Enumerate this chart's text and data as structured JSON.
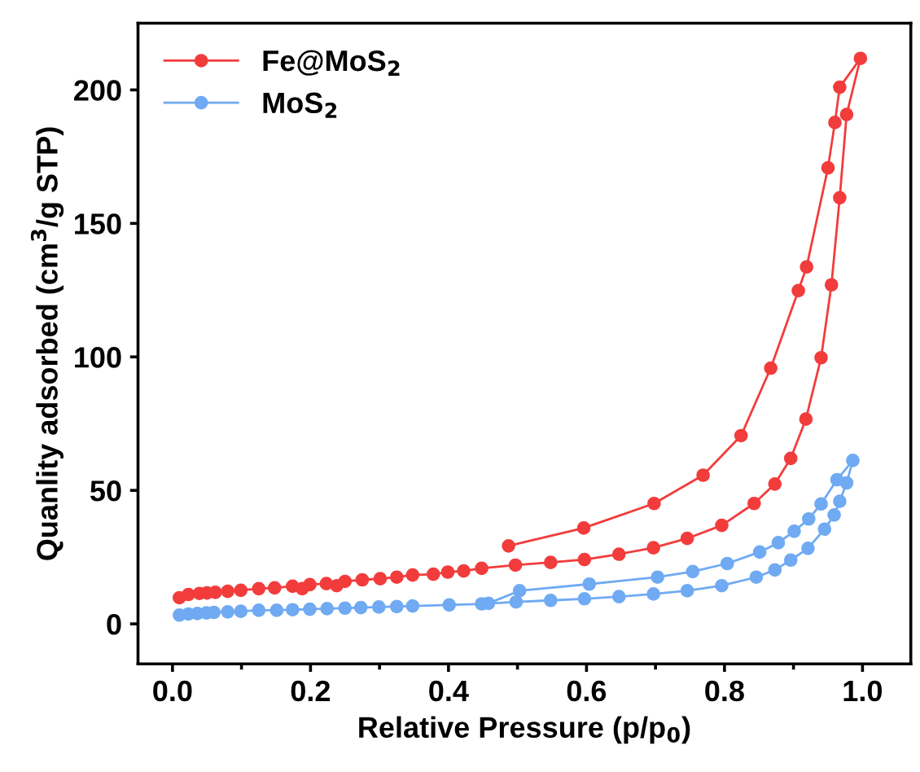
{
  "chart_data": {
    "type": "line",
    "xlabel": "Relative Pressure (p/p$_{0}$)",
    "ylabel": "Quanlity adsorbed (cm$^{3}$/g STP)",
    "xlim": [
      -0.05,
      1.07
    ],
    "ylim": [
      -15,
      225
    ],
    "xticks": [
      {
        "value": 0.0,
        "label": "0.0"
      },
      {
        "value": 0.1,
        "label": null
      },
      {
        "value": 0.2,
        "label": "0.2"
      },
      {
        "value": 0.3,
        "label": null
      },
      {
        "value": 0.4,
        "label": "0.4"
      },
      {
        "value": 0.5,
        "label": null
      },
      {
        "value": 0.6,
        "label": "0.6"
      },
      {
        "value": 0.7,
        "label": null
      },
      {
        "value": 0.8,
        "label": "0.8"
      },
      {
        "value": 0.9,
        "label": null
      },
      {
        "value": 1.0,
        "label": "1.0"
      }
    ],
    "yticks": [
      0,
      50,
      100,
      150,
      200
    ],
    "grid": false,
    "legend": "top left",
    "marker": "circle",
    "line_style": "solid",
    "series": [
      {
        "name": "Fe@MoS$_{2}$",
        "color": "#f23c3c",
        "x": [
          0.01,
          0.023,
          0.039,
          0.05,
          0.062,
          0.08,
          0.099,
          0.125,
          0.148,
          0.174,
          0.188,
          0.199,
          0.223,
          0.238,
          0.25,
          0.275,
          0.301,
          0.325,
          0.348,
          0.378,
          0.399,
          0.422,
          0.448,
          0.497,
          0.548,
          0.597,
          0.647,
          0.697,
          0.746,
          0.796,
          0.843,
          0.873,
          0.896,
          0.918,
          0.94,
          0.955,
          0.967,
          0.977,
          0.997,
          0.967,
          0.96,
          0.95,
          0.919,
          0.907,
          0.867,
          0.824,
          0.769,
          0.698,
          0.596,
          0.487
        ],
        "values": [
          9.8,
          11.0,
          11.4,
          11.6,
          11.8,
          12.2,
          12.6,
          13.2,
          13.5,
          14.1,
          13.2,
          14.7,
          15.1,
          14.3,
          15.9,
          16.5,
          16.9,
          17.5,
          18.3,
          18.6,
          19.4,
          19.8,
          20.8,
          22.0,
          23.0,
          24.1,
          26.1,
          28.5,
          32.0,
          36.9,
          45.1,
          52.4,
          62.0,
          76.7,
          99.7,
          127.0,
          159.6,
          190.8,
          211.8,
          201.0,
          187.8,
          170.8,
          133.7,
          124.8,
          95.8,
          70.5,
          55.7,
          45.1,
          35.9,
          29.2
        ]
      },
      {
        "name": "MoS$_{2}$",
        "color": "#70aaf2",
        "x": [
          0.01,
          0.023,
          0.036,
          0.049,
          0.06,
          0.08,
          0.099,
          0.125,
          0.151,
          0.174,
          0.199,
          0.224,
          0.25,
          0.273,
          0.299,
          0.325,
          0.348,
          0.401,
          0.448,
          0.498,
          0.548,
          0.597,
          0.647,
          0.697,
          0.746,
          0.796,
          0.846,
          0.873,
          0.896,
          0.921,
          0.945,
          0.959,
          0.967,
          0.977,
          0.986,
          0.963,
          0.94,
          0.922,
          0.901,
          0.878,
          0.851,
          0.804,
          0.754,
          0.703,
          0.604,
          0.503,
          0.458
        ],
        "values": [
          3.3,
          3.7,
          3.9,
          4.1,
          4.3,
          4.5,
          4.7,
          5.1,
          5.1,
          5.3,
          5.5,
          5.7,
          5.9,
          6.1,
          6.3,
          6.5,
          6.7,
          7.1,
          7.5,
          8.2,
          8.8,
          9.4,
          10.2,
          11.2,
          12.4,
          14.3,
          17.5,
          20.2,
          23.9,
          28.3,
          35.5,
          40.8,
          45.9,
          52.8,
          61.2,
          54.0,
          44.9,
          39.3,
          34.7,
          30.4,
          26.9,
          22.6,
          19.6,
          17.5,
          14.9,
          12.4,
          7.7
        ]
      }
    ]
  }
}
